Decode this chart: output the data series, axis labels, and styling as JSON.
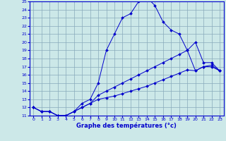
{
  "xlabel": "Graphe des températures (°c)",
  "bg_color": "#cce8e8",
  "grid_color": "#88aabb",
  "line_color": "#0000cc",
  "xlim": [
    -0.5,
    23.5
  ],
  "ylim": [
    11,
    25
  ],
  "xticks": [
    0,
    1,
    2,
    3,
    4,
    5,
    6,
    7,
    8,
    9,
    10,
    11,
    12,
    13,
    14,
    15,
    16,
    17,
    18,
    19,
    20,
    21,
    22,
    23
  ],
  "yticks": [
    11,
    12,
    13,
    14,
    15,
    16,
    17,
    18,
    19,
    20,
    21,
    22,
    23,
    24,
    25
  ],
  "curve1_x": [
    0,
    1,
    2,
    3,
    4,
    5,
    6,
    7,
    8,
    9,
    10,
    11,
    12,
    13,
    14,
    15,
    16,
    17,
    18,
    19,
    20,
    21,
    22,
    23
  ],
  "curve1_y": [
    12.0,
    11.5,
    11.5,
    11.0,
    11.0,
    11.5,
    12.5,
    13.0,
    15.0,
    19.0,
    21.0,
    23.0,
    23.5,
    25.0,
    25.5,
    24.5,
    22.5,
    21.5,
    21.0,
    19.0,
    20.0,
    17.5,
    17.5,
    16.5
  ],
  "curve2_x": [
    0,
    1,
    2,
    3,
    4,
    5,
    6,
    7,
    8,
    9,
    10,
    11,
    12,
    13,
    14,
    15,
    16,
    17,
    18,
    19,
    20,
    21,
    22,
    23
  ],
  "curve2_y": [
    12.0,
    11.5,
    11.5,
    11.0,
    11.0,
    11.5,
    12.0,
    12.5,
    13.0,
    13.2,
    13.4,
    13.7,
    14.0,
    14.3,
    14.6,
    15.0,
    15.4,
    15.8,
    16.2,
    16.6,
    16.5,
    17.0,
    17.0,
    16.5
  ],
  "curve3_x": [
    0,
    1,
    2,
    3,
    4,
    5,
    6,
    7,
    8,
    9,
    10,
    11,
    12,
    13,
    14,
    15,
    16,
    17,
    18,
    19,
    20,
    21,
    22,
    23
  ],
  "curve3_y": [
    12.0,
    11.5,
    11.5,
    11.0,
    11.0,
    11.5,
    12.0,
    12.5,
    13.5,
    14.0,
    14.5,
    15.0,
    15.5,
    16.0,
    16.5,
    17.0,
    17.5,
    18.0,
    18.5,
    19.0,
    16.5,
    17.0,
    17.2,
    16.5
  ]
}
